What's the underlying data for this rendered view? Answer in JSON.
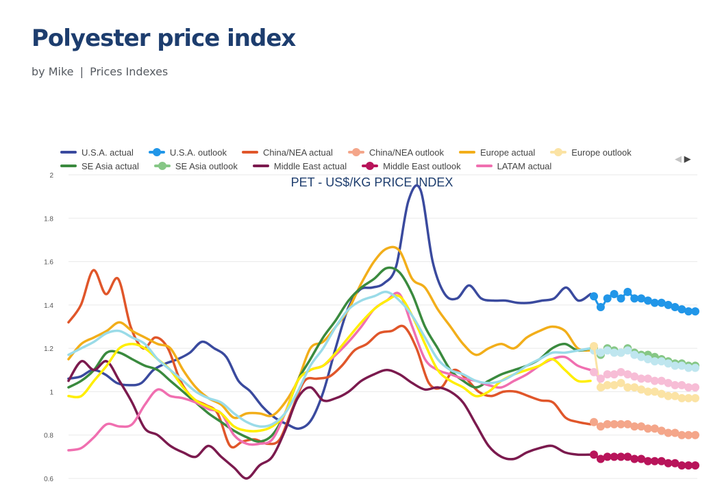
{
  "header": {
    "title": "Polyester price index",
    "author_line": "by Mike",
    "separator": "|",
    "category": "Prices Indexes"
  },
  "pager": {
    "prev_icon": "triangle-left-icon",
    "next_icon": "triangle-right-icon"
  },
  "colors": {
    "usa_actual": "#3a4a9e",
    "usa_outlook": "#2196e8",
    "china_actual": "#e0562a",
    "china_outlook": "#f4a68a",
    "europe_actual": "#f2ae1a",
    "europe_outlook": "#fbe3a4",
    "se_asia_actual": "#3a8a3e",
    "se_asia_outlook": "#86c786",
    "middle_east_actual": "#7b1a4e",
    "middle_east_outlook": "#b8145a",
    "latam_actual": "#f06fb0",
    "latam_outlook": "#f7bdd6",
    "light_blue": "#9adbe8"
  },
  "chart_data": {
    "type": "line",
    "title": "PET - US$/KG PRICE INDEX",
    "ylim": [
      0.6,
      2
    ],
    "y_ticks": [
      "0.6",
      "0.8",
      "1",
      "1.2",
      "1.4",
      "1.6",
      "1.8",
      "2"
    ],
    "grid": true,
    "legend_position": "top",
    "legend": [
      [
        "U.S.A. actual",
        "U.S.A. outlook",
        "China/NEA actual",
        "China/NEA outlook",
        "Europe actual",
        "Europe outlook"
      ],
      [
        "SE Asia actual",
        "SE Asia outlook",
        "Middle East actual",
        "Middle East outlook",
        "LATAM actual"
      ]
    ],
    "series": [
      {
        "name": "U.S.A. actual",
        "color": "#3a4a9e",
        "values": [
          1.06,
          1.07,
          1.1,
          1.08,
          1.04,
          1.03,
          1.04,
          1.1,
          1.13,
          1.15,
          1.18,
          1.23,
          1.2,
          1.16,
          1.05,
          1,
          0.93,
          0.88,
          0.85,
          0.83,
          0.87,
          1,
          1.2,
          1.38,
          1.47,
          1.48,
          1.5,
          1.58,
          1.88,
          1.93,
          1.6,
          1.45,
          1.43,
          1.49,
          1.43,
          1.42,
          1.42,
          1.41,
          1.41,
          1.42,
          1.43,
          1.48,
          1.42,
          1.45
        ]
      },
      {
        "name": "China/NEA actual",
        "color": "#e0562a",
        "values": [
          1.32,
          1.4,
          1.56,
          1.45,
          1.52,
          1.3,
          1.2,
          1.25,
          1.2,
          1.05,
          0.97,
          0.94,
          0.9,
          0.75,
          0.77,
          0.78,
          0.76,
          0.78,
          0.92,
          1.05,
          1.06,
          1.07,
          1.12,
          1.19,
          1.22,
          1.27,
          1.28,
          1.3,
          1.2,
          1.04,
          1.02,
          1.1,
          1.06,
          1,
          0.98,
          1,
          1,
          0.98,
          0.96,
          0.95,
          0.88,
          0.86,
          0.85
        ]
      },
      {
        "name": "Europe actual",
        "color": "#f2ae1a",
        "values": [
          1.15,
          1.22,
          1.25,
          1.28,
          1.32,
          1.28,
          1.25,
          1.22,
          1.2,
          1.1,
          1.02,
          0.97,
          0.94,
          0.88,
          0.9,
          0.9,
          0.89,
          0.95,
          1.05,
          1.2,
          1.23,
          1.3,
          1.38,
          1.5,
          1.6,
          1.66,
          1.65,
          1.52,
          1.48,
          1.38,
          1.3,
          1.22,
          1.17,
          1.2,
          1.22,
          1.2,
          1.25,
          1.28,
          1.3,
          1.28,
          1.2,
          1.19
        ]
      },
      {
        "name": "SE Asia actual",
        "color": "#3a8a3e",
        "values": [
          1.02,
          1.05,
          1.1,
          1.18,
          1.18,
          1.15,
          1.12,
          1.1,
          1.05,
          1,
          0.95,
          0.9,
          0.86,
          0.82,
          0.79,
          0.77,
          0.8,
          0.9,
          1.05,
          1.15,
          1.25,
          1.33,
          1.42,
          1.48,
          1.52,
          1.57,
          1.55,
          1.45,
          1.3,
          1.2,
          1.1,
          1.05,
          1.02,
          1.05,
          1.08,
          1.1,
          1.12,
          1.15,
          1.2,
          1.22,
          1.19,
          1.2
        ]
      },
      {
        "name": "Middle East actual",
        "color": "#7b1a4e",
        "values": [
          1.05,
          1.14,
          1.1,
          1.14,
          1.05,
          0.95,
          0.83,
          0.8,
          0.75,
          0.72,
          0.7,
          0.75,
          0.7,
          0.65,
          0.6,
          0.66,
          0.7,
          0.82,
          0.97,
          1.02,
          0.96,
          0.97,
          1,
          1.05,
          1.08,
          1.1,
          1.08,
          1.04,
          1.01,
          1.02,
          1,
          0.95,
          0.85,
          0.75,
          0.7,
          0.69,
          0.72,
          0.74,
          0.75,
          0.72,
          0.71,
          0.71
        ]
      },
      {
        "name": "LATAM actual",
        "color": "#f06fb0",
        "values": [
          0.73,
          0.74,
          0.79,
          0.85,
          0.84,
          0.85,
          0.94,
          1.01,
          0.98,
          0.97,
          0.95,
          0.92,
          0.9,
          0.8,
          0.76,
          0.76,
          0.78,
          0.9,
          1.05,
          1.1,
          1.12,
          1.17,
          1.23,
          1.3,
          1.38,
          1.42,
          1.45,
          1.3,
          1.15,
          1.1,
          1.08,
          1.06,
          1.05,
          1.03,
          1.02,
          1.05,
          1.08,
          1.12,
          1.15,
          1.16,
          1.12,
          1.1
        ]
      },
      {
        "name": "",
        "color": "#ffee00",
        "values": [
          0.98,
          0.98,
          1.05,
          1.12,
          1.2,
          1.22,
          1.2,
          1.15,
          1.1,
          1.02,
          0.96,
          0.93,
          0.9,
          0.84,
          0.82,
          0.82,
          0.84,
          0.9,
          1.05,
          1.1,
          1.12,
          1.18,
          1.25,
          1.32,
          1.38,
          1.42,
          1.44,
          1.35,
          1.22,
          1.1,
          1.05,
          1.02,
          0.98,
          1,
          1.05,
          1.08,
          1.1,
          1.12,
          1.15,
          1.1,
          1.05,
          1.05
        ]
      },
      {
        "name": "",
        "color": "#9adbe8",
        "values": [
          1.17,
          1.2,
          1.23,
          1.27,
          1.28,
          1.25,
          1.22,
          1.15,
          1.1,
          1.05,
          1,
          0.97,
          0.95,
          0.9,
          0.86,
          0.84,
          0.85,
          0.9,
          1,
          1.12,
          1.2,
          1.3,
          1.38,
          1.42,
          1.44,
          1.46,
          1.42,
          1.35,
          1.25,
          1.15,
          1.1,
          1.08,
          1.05,
          1.04,
          1.05,
          1.08,
          1.12,
          1.15,
          1.18,
          1.18,
          1.19,
          1.2
        ]
      },
      {
        "name": "U.S.A. outlook",
        "color": "#2196e8",
        "values": [
          1.44,
          1.39,
          1.43,
          1.45,
          1.43,
          1.46,
          1.43,
          1.43,
          1.42,
          1.41,
          1.41,
          1.4,
          1.39,
          1.38,
          1.37,
          1.37
        ]
      },
      {
        "name": "China/NEA outlook",
        "color": "#f4a68a",
        "values": [
          0.86,
          0.84,
          0.85,
          0.85,
          0.85,
          0.85,
          0.84,
          0.84,
          0.83,
          0.83,
          0.82,
          0.81,
          0.81,
          0.8,
          0.8,
          0.8
        ]
      },
      {
        "name": "SE Asia outlook",
        "color": "#86c786",
        "values": [
          1.2,
          1.17,
          1.2,
          1.19,
          1.18,
          1.2,
          1.18,
          1.17,
          1.17,
          1.16,
          1.15,
          1.14,
          1.13,
          1.13,
          1.12,
          1.12
        ]
      },
      {
        "name": "Middle East outlook",
        "color": "#b8145a",
        "values": [
          0.71,
          0.69,
          0.7,
          0.7,
          0.7,
          0.7,
          0.69,
          0.69,
          0.68,
          0.68,
          0.68,
          0.67,
          0.67,
          0.66,
          0.66,
          0.66
        ]
      },
      {
        "name": "",
        "color": "#bfe6ef",
        "values": [
          1.19,
          1.18,
          1.19,
          1.18,
          1.18,
          1.19,
          1.17,
          1.16,
          1.15,
          1.14,
          1.14,
          1.13,
          1.12,
          1.12,
          1.11,
          1.11
        ]
      },
      {
        "name": "Europe outlook",
        "color": "#fbe3a4",
        "values": [
          1.21,
          1.02,
          1.03,
          1.03,
          1.04,
          1.02,
          1.02,
          1.01,
          1,
          1,
          0.99,
          0.98,
          0.98,
          0.97,
          0.97,
          0.97
        ]
      },
      {
        "name": "",
        "color": "#f7bdd6",
        "values": [
          1.09,
          1.06,
          1.08,
          1.08,
          1.09,
          1.08,
          1.07,
          1.06,
          1.06,
          1.05,
          1.05,
          1.04,
          1.03,
          1.03,
          1.02,
          1.02
        ]
      }
    ]
  }
}
